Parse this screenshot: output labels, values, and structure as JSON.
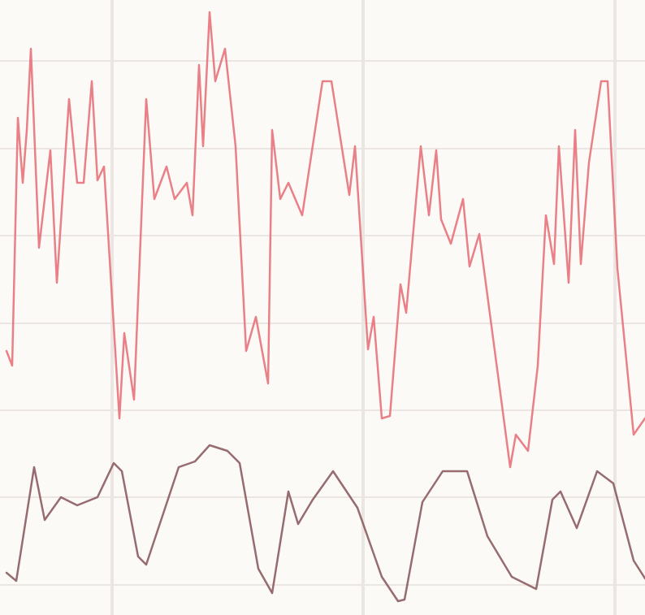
{
  "chart_data": {
    "type": "line",
    "xlim": [
      0,
      79.4
    ],
    "ylim": [
      0,
      75.7
    ],
    "xticks": [
      13.8,
      44.7,
      75.7
    ],
    "yticks": [
      3.7,
      14.5,
      25.2,
      35.9,
      46.7,
      57.4,
      68.2
    ],
    "grid": true,
    "series": [
      {
        "color": "#e8727a",
        "x": [
          0.8,
          1.5,
          2.2,
          2.8,
          3.3,
          3.8,
          4.8,
          6.2,
          7,
          8.5,
          9.5,
          10.3,
          11.3,
          12,
          12.8,
          14.7,
          15.3,
          16.5,
          18,
          19,
          20.5,
          21.5,
          23,
          23.7,
          24.5,
          25,
          25.8,
          26.5,
          27.7,
          29,
          30.3,
          31.5,
          33,
          33.5,
          34.5,
          35.5,
          37.2,
          39.7,
          40.8,
          43,
          43.7,
          45.3,
          46,
          47,
          48,
          49.3,
          50,
          51.8,
          52.8,
          53.7,
          54.3,
          55.5,
          57,
          57.8,
          59,
          62.8,
          63.5,
          65,
          66.2,
          67.2,
          68.2,
          68.8,
          70,
          70.8,
          71.5,
          72.5,
          74,
          74.8,
          76,
          78,
          79.4
        ],
        "values": [
          32.5,
          30.7,
          61.2,
          53.2,
          59.7,
          69.7,
          45.2,
          57.2,
          40.9,
          63.5,
          53.2,
          53.2,
          65.7,
          53.5,
          55.2,
          24.2,
          34.7,
          26.5,
          63.5,
          51.2,
          55.2,
          51.2,
          53.2,
          49.2,
          67.7,
          57.7,
          74.2,
          65.7,
          69.7,
          57.7,
          32.5,
          36.7,
          28.5,
          59.7,
          51.2,
          53.2,
          49.2,
          65.7,
          65.7,
          51.7,
          57.7,
          32.7,
          36.7,
          24.2,
          24.5,
          40.7,
          37.2,
          57.7,
          49.2,
          57.2,
          48.7,
          45.7,
          51.2,
          42.9,
          46.9,
          18.2,
          22.2,
          20.2,
          30.7,
          49.2,
          43.2,
          57.7,
          40.9,
          59.7,
          43.2,
          55.7,
          65.7,
          65.7,
          42.7,
          22.2,
          24.2
        ]
      },
      {
        "color": "#8c5c60",
        "x": [
          0.8,
          2,
          4.2,
          5.5,
          7.5,
          9.5,
          12,
          14,
          15,
          17,
          18,
          22,
          24,
          25.8,
          28,
          29.5,
          31.8,
          33.5,
          35.5,
          36.7,
          38.5,
          41,
          44,
          47,
          49,
          49.8,
          52,
          54.5,
          57.5,
          60,
          63,
          66,
          68,
          69,
          71,
          73.5,
          75.5,
          78,
          79.4
        ],
        "values": [
          5.2,
          4.2,
          18.2,
          11.7,
          14.5,
          13.5,
          14.5,
          18.7,
          17.7,
          7.2,
          6.2,
          18.2,
          18.9,
          20.9,
          20.2,
          18.7,
          5.7,
          2.7,
          15.2,
          11.2,
          14.2,
          17.7,
          13.2,
          4.7,
          1.7,
          1.9,
          13.9,
          17.7,
          17.7,
          9.7,
          4.7,
          3.2,
          14.2,
          15.2,
          10.7,
          17.7,
          16.2,
          6.7,
          4.5
        ]
      }
    ]
  }
}
